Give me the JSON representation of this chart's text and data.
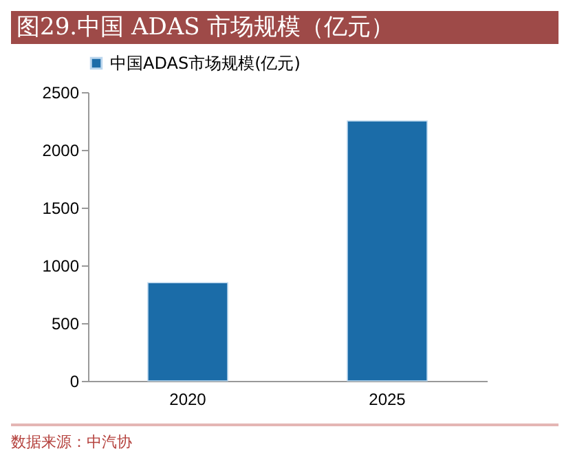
{
  "chart_data": {
    "type": "bar",
    "title": "图29.中国 ADAS 市场规模（亿元）",
    "categories": [
      "2020",
      "2025"
    ],
    "series": [
      {
        "name": "中国ADAS市场规模(亿元)",
        "color": "#1b6ca8",
        "values": [
          850,
          2250
        ]
      }
    ],
    "ylim": [
      0,
      2500
    ],
    "yticks": [
      0,
      500,
      1000,
      1500,
      2000,
      2500
    ],
    "grid": false,
    "legend": "top",
    "annotations": [
      "数据来源：中汽协"
    ]
  }
}
